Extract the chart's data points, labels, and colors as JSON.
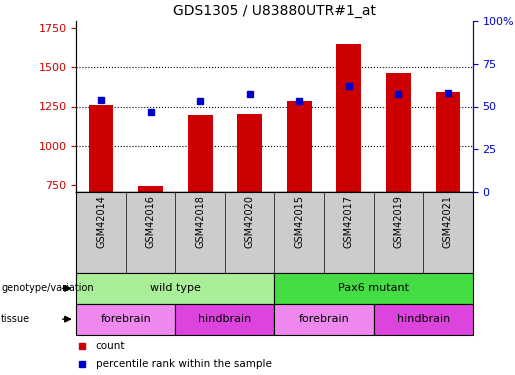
{
  "title": "GDS1305 / U83880UTR#1_at",
  "samples": [
    "GSM42014",
    "GSM42016",
    "GSM42018",
    "GSM42020",
    "GSM42015",
    "GSM42017",
    "GSM42019",
    "GSM42021"
  ],
  "counts": [
    1260,
    740,
    1195,
    1205,
    1285,
    1650,
    1465,
    1340
  ],
  "percentiles": [
    54,
    47,
    53,
    57,
    53,
    62,
    57,
    58
  ],
  "ylim_left": [
    700,
    1800
  ],
  "ylim_right": [
    0,
    100
  ],
  "yticks_left": [
    750,
    1000,
    1250,
    1500,
    1750
  ],
  "yticks_right": [
    0,
    25,
    50,
    75,
    100
  ],
  "bar_color": "#cc0000",
  "dot_color": "#0000cc",
  "bar_width": 0.5,
  "genotype_groups": [
    {
      "label": "wild type",
      "start": 0,
      "end": 4,
      "color": "#aaee99"
    },
    {
      "label": "Pax6 mutant",
      "start": 4,
      "end": 8,
      "color": "#44dd44"
    }
  ],
  "tissue_groups": [
    {
      "label": "forebrain",
      "start": 0,
      "end": 2,
      "color": "#ee88ee"
    },
    {
      "label": "hindbrain",
      "start": 2,
      "end": 4,
      "color": "#dd44dd"
    },
    {
      "label": "forebrain",
      "start": 4,
      "end": 6,
      "color": "#ee88ee"
    },
    {
      "label": "hindbrain",
      "start": 6,
      "end": 8,
      "color": "#dd44dd"
    }
  ],
  "legend_count_color": "#cc0000",
  "legend_pct_color": "#0000cc",
  "tick_label_color_left": "#cc0000",
  "tick_label_color_right": "#0000cc",
  "grid_yticks": [
    1000,
    1250,
    1500
  ],
  "xtick_bg_color": "#cccccc",
  "fig_width": 5.15,
  "fig_height": 3.75
}
